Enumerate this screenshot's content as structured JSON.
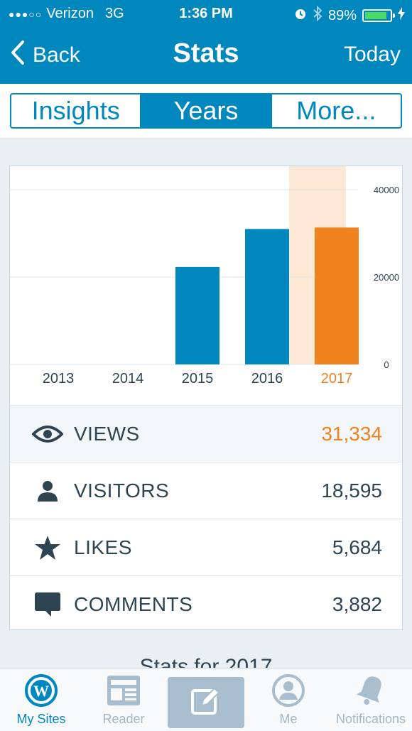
{
  "status": {
    "carrier": "Verizon",
    "network": "3G",
    "time": "1:36 PM",
    "battery": "89%",
    "battery_level": 0.89
  },
  "nav": {
    "back_label": "Back",
    "title": "Stats",
    "right_label": "Today"
  },
  "segments": [
    {
      "label": "Insights",
      "active": false
    },
    {
      "label": "Years",
      "active": true
    },
    {
      "label": "More...",
      "active": false
    }
  ],
  "chart_data": {
    "type": "bar",
    "categories": [
      "2013",
      "2014",
      "2015",
      "2016",
      "2017"
    ],
    "values": [
      0,
      0,
      22300,
      31000,
      31334
    ],
    "selected_index": 4,
    "y_ticks": [
      "0",
      "20000",
      "40000"
    ],
    "ylim": [
      0,
      40000
    ],
    "grid": true,
    "colors": {
      "bar": "#0087be",
      "selected": "#f0821e",
      "highlight": "#fde7d5",
      "grid": "#dce5ec"
    }
  },
  "stats": [
    {
      "icon": "eye-icon",
      "label": "VIEWS",
      "value": "31,334",
      "selected": true
    },
    {
      "icon": "person-icon",
      "label": "VISITORS",
      "value": "18,595",
      "selected": false
    },
    {
      "icon": "star-icon",
      "label": "LIKES",
      "value": "5,684",
      "selected": false
    },
    {
      "icon": "comment-icon",
      "label": "COMMENTS",
      "value": "3,882",
      "selected": false
    }
  ],
  "peek_text": "Stats for 2017",
  "tabs": [
    {
      "label": "My Sites",
      "icon": "wordpress-icon",
      "active": true
    },
    {
      "label": "Reader",
      "icon": "reader-icon",
      "active": false
    },
    {
      "label": "",
      "icon": "write-icon",
      "active": false
    },
    {
      "label": "Me",
      "icon": "me-icon",
      "active": false
    },
    {
      "label": "Notifications",
      "icon": "bell-icon",
      "active": false
    }
  ]
}
